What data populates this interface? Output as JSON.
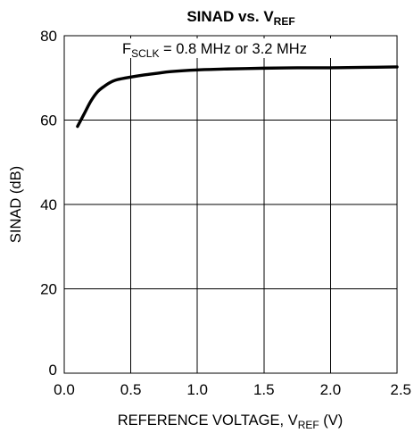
{
  "chart_data": {
    "type": "line",
    "title": {
      "main": "SINAD vs. V",
      "sub": "REF"
    },
    "xlabel": {
      "main": "REFERENCE VOLTAGE, V",
      "sub": "REF",
      "suffix": " (V)"
    },
    "ylabel": "SINAD (dB)",
    "xlim": [
      0,
      2.5
    ],
    "ylim": [
      0,
      80
    ],
    "x_ticks": [
      "0.0",
      "0.5",
      "1.0",
      "1.5",
      "2.0",
      "2.5"
    ],
    "y_ticks": [
      "0",
      "20",
      "40",
      "60",
      "80"
    ],
    "grid": true,
    "annotation": {
      "main": "F",
      "sub": "SCLK",
      "suffix": " = 0.8 MHz or 3.2 MHz"
    },
    "series": [
      {
        "x": [
          0.1,
          0.15,
          0.2,
          0.25,
          0.3,
          0.35,
          0.4,
          0.5,
          0.6,
          0.7,
          0.8,
          1.0,
          1.2,
          1.5,
          1.75,
          2.0,
          2.25,
          2.5
        ],
        "values": [
          58.5,
          61.5,
          64.5,
          66.7,
          68.0,
          69.0,
          69.6,
          70.2,
          70.7,
          71.1,
          71.5,
          71.9,
          72.1,
          72.3,
          72.4,
          72.4,
          72.5,
          72.6
        ]
      }
    ],
    "color": "#000000"
  }
}
